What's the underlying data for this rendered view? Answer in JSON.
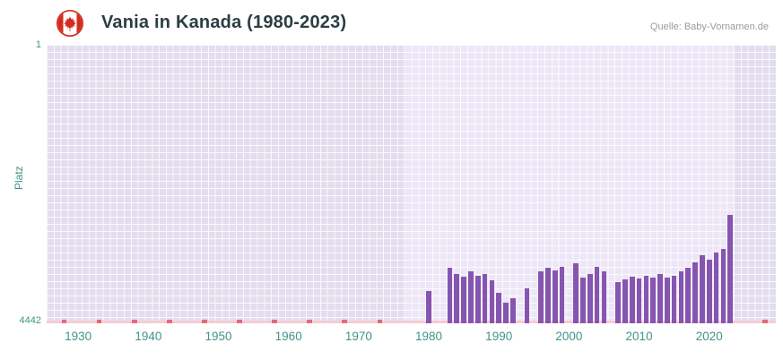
{
  "header": {
    "title": "Vania in Kanada (1980-2023)",
    "source": "Quelle: Baby-Vornamen.de",
    "flag_icon": "canada-flag-icon"
  },
  "chart_data": {
    "type": "bar",
    "title": "Vania in Kanada (1980-2023)",
    "xlabel": "",
    "ylabel": "Platz",
    "y_axis_inverted": true,
    "ylim": [
      1,
      4442
    ],
    "y_tick_labels": [
      "1",
      "4442"
    ],
    "x_range": [
      1926,
      2029
    ],
    "x_ticks": [
      1930,
      1940,
      1950,
      1960,
      1970,
      1980,
      1990,
      2000,
      2010,
      2020
    ],
    "band_years": [
      1977,
      2023
    ],
    "grid": true,
    "legend": false,
    "points_format": [
      "year",
      "rank"
    ],
    "series": [
      {
        "name": "Vania",
        "points": [
          [
            1980,
            3930
          ],
          [
            1983,
            3560
          ],
          [
            1984,
            3650
          ],
          [
            1985,
            3700
          ],
          [
            1986,
            3620
          ],
          [
            1987,
            3680
          ],
          [
            1988,
            3650
          ],
          [
            1989,
            3760
          ],
          [
            1990,
            3950
          ],
          [
            1991,
            4120
          ],
          [
            1992,
            4040
          ],
          [
            1994,
            3890
          ],
          [
            1996,
            3620
          ],
          [
            1997,
            3560
          ],
          [
            1998,
            3600
          ],
          [
            1999,
            3540
          ],
          [
            2001,
            3480
          ],
          [
            2002,
            3720
          ],
          [
            2003,
            3660
          ],
          [
            2004,
            3540
          ],
          [
            2005,
            3620
          ],
          [
            2007,
            3780
          ],
          [
            2008,
            3740
          ],
          [
            2009,
            3700
          ],
          [
            2010,
            3730
          ],
          [
            2011,
            3680
          ],
          [
            2012,
            3710
          ],
          [
            2013,
            3660
          ],
          [
            2014,
            3720
          ],
          [
            2015,
            3680
          ],
          [
            2016,
            3620
          ],
          [
            2017,
            3560
          ],
          [
            2018,
            3470
          ],
          [
            2019,
            3360
          ],
          [
            2020,
            3430
          ],
          [
            2021,
            3310
          ],
          [
            2022,
            3250
          ],
          [
            2023,
            2720
          ]
        ]
      }
    ],
    "no_rank_marker_years": [
      1928,
      1933,
      1938,
      1943,
      1948,
      1953,
      1958,
      1963,
      1968,
      1973,
      2028
    ],
    "colors": {
      "bar": "#8655b0",
      "marker": "#e26b78",
      "baseline": "#f6ccd5",
      "plot_bg": "#e3ddee",
      "band_bg": "#ece6f6",
      "grid": "#ffffff",
      "tick_text": "#3f9488",
      "title_text": "#2b3e42",
      "source_text": "#9b9b9b",
      "flag_red": "#d52b1e"
    }
  }
}
